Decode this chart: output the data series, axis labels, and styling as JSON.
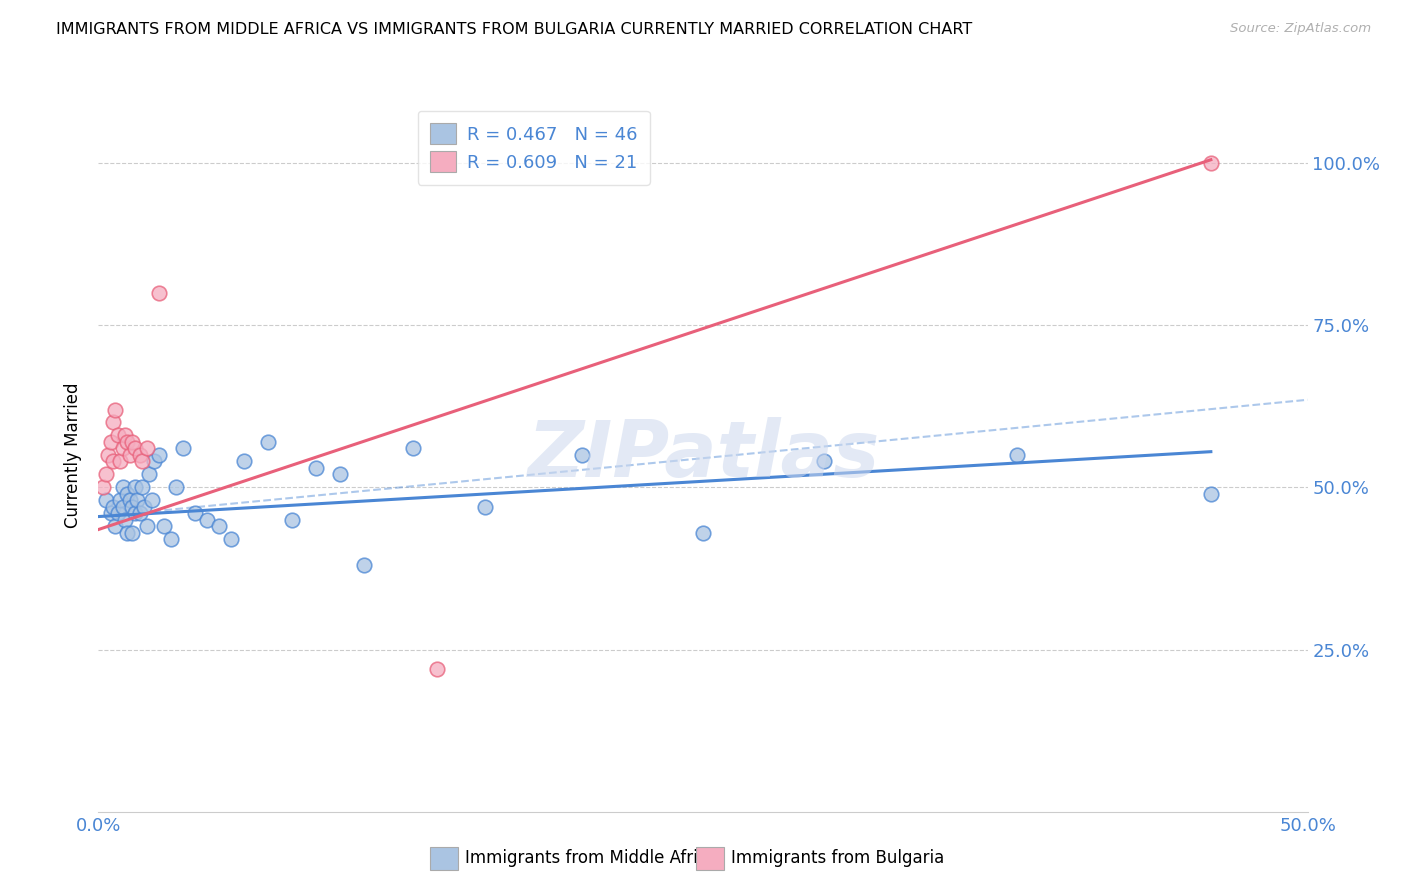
{
  "title": "IMMIGRANTS FROM MIDDLE AFRICA VS IMMIGRANTS FROM BULGARIA CURRENTLY MARRIED CORRELATION CHART",
  "source": "Source: ZipAtlas.com",
  "ylabel": "Currently Married",
  "xlim": [
    0.0,
    0.5
  ],
  "ylim": [
    0.0,
    1.1
  ],
  "ytick_labels": [
    "25.0%",
    "50.0%",
    "75.0%",
    "100.0%"
  ],
  "ytick_values": [
    0.25,
    0.5,
    0.75,
    1.0
  ],
  "legend_r1": "R = 0.467",
  "legend_n1": "N = 46",
  "legend_r2": "R = 0.609",
  "legend_n2": "N = 21",
  "color_blue": "#aac4e2",
  "color_pink": "#f5adc0",
  "line_blue": "#4a86d4",
  "line_pink": "#e8607a",
  "watermark": "ZIPatlas",
  "blue_scatter_x": [
    0.003,
    0.005,
    0.006,
    0.007,
    0.008,
    0.009,
    0.01,
    0.01,
    0.011,
    0.012,
    0.012,
    0.013,
    0.014,
    0.014,
    0.015,
    0.015,
    0.016,
    0.017,
    0.018,
    0.019,
    0.02,
    0.021,
    0.022,
    0.023,
    0.025,
    0.027,
    0.03,
    0.032,
    0.035,
    0.04,
    0.045,
    0.05,
    0.055,
    0.06,
    0.07,
    0.08,
    0.09,
    0.1,
    0.11,
    0.13,
    0.16,
    0.2,
    0.25,
    0.3,
    0.38,
    0.46
  ],
  "blue_scatter_y": [
    0.48,
    0.46,
    0.47,
    0.44,
    0.46,
    0.48,
    0.47,
    0.5,
    0.45,
    0.49,
    0.43,
    0.48,
    0.47,
    0.43,
    0.46,
    0.5,
    0.48,
    0.46,
    0.5,
    0.47,
    0.44,
    0.52,
    0.48,
    0.54,
    0.55,
    0.44,
    0.42,
    0.5,
    0.56,
    0.46,
    0.45,
    0.44,
    0.42,
    0.54,
    0.57,
    0.45,
    0.53,
    0.52,
    0.38,
    0.56,
    0.47,
    0.55,
    0.43,
    0.54,
    0.55,
    0.49
  ],
  "pink_scatter_x": [
    0.002,
    0.003,
    0.004,
    0.005,
    0.006,
    0.006,
    0.007,
    0.008,
    0.009,
    0.01,
    0.011,
    0.012,
    0.013,
    0.014,
    0.015,
    0.017,
    0.018,
    0.02,
    0.025,
    0.14,
    0.46
  ],
  "pink_scatter_y": [
    0.5,
    0.52,
    0.55,
    0.57,
    0.6,
    0.54,
    0.62,
    0.58,
    0.54,
    0.56,
    0.58,
    0.57,
    0.55,
    0.57,
    0.56,
    0.55,
    0.54,
    0.56,
    0.8,
    0.22,
    1.0
  ],
  "blue_line_x": [
    0.0,
    0.46
  ],
  "blue_line_y": [
    0.455,
    0.555
  ],
  "blue_dash_line_x": [
    0.0,
    0.5
  ],
  "blue_dash_line_y": [
    0.455,
    0.635
  ],
  "pink_line_x": [
    0.0,
    0.46
  ],
  "pink_line_y": [
    0.435,
    1.005
  ]
}
